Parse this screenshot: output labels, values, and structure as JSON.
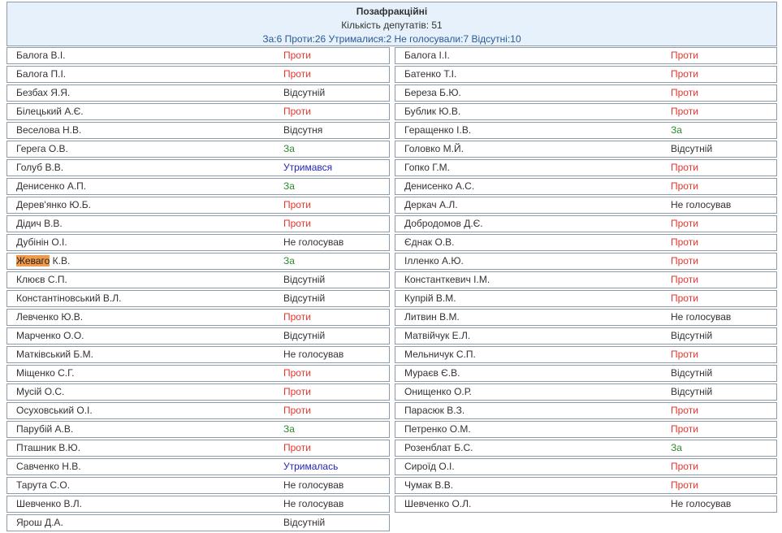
{
  "header": {
    "title": "Позафракційні",
    "count": "Кількість депутатів: 51",
    "summary": "За:6 Проти:26 Утрималися:2 Не голосували:7 Відсутні:10"
  },
  "colors": {
    "za": "#2e8b2e",
    "proty": "#e8332e",
    "abstained": "#2525b8",
    "other": "#333333",
    "highlight": "#f09a4a",
    "header_bg": "#e6f1fc"
  },
  "left": [
    {
      "name": "Балога В.І.",
      "status": "Проти"
    },
    {
      "name": "Балога П.І.",
      "status": "Проти"
    },
    {
      "name": "Безбах Я.Я.",
      "status": "Відсутній"
    },
    {
      "name": "Білецький А.Є.",
      "status": "Проти"
    },
    {
      "name": "Веселова Н.В.",
      "status": "Відсутня"
    },
    {
      "name": "Герега О.В.",
      "status": "За"
    },
    {
      "name": "Голуб В.В.",
      "status": "Утримався"
    },
    {
      "name": "Денисенко А.П.",
      "status": "За"
    },
    {
      "name": "Дерев'янко Ю.Б.",
      "status": "Проти"
    },
    {
      "name": "Дідич В.В.",
      "status": "Проти"
    },
    {
      "name": "Дубінін О.І.",
      "status": "Не голосував"
    },
    {
      "name": "К.В.",
      "highlight": "Жеваго",
      "status": "За"
    },
    {
      "name": "Клюєв С.П.",
      "status": "Відсутній"
    },
    {
      "name": "Константіновський В.Л.",
      "status": "Відсутній"
    },
    {
      "name": "Левченко Ю.В.",
      "status": "Проти"
    },
    {
      "name": "Марченко О.О.",
      "status": "Відсутній"
    },
    {
      "name": "Матківський Б.М.",
      "status": "Не голосував"
    },
    {
      "name": "Міщенко С.Г.",
      "status": "Проти"
    },
    {
      "name": "Мусій О.С.",
      "status": "Проти"
    },
    {
      "name": "Осуховський О.І.",
      "status": "Проти"
    },
    {
      "name": "Парубій А.В.",
      "status": "За"
    },
    {
      "name": "Пташник В.Ю.",
      "status": "Проти"
    },
    {
      "name": "Савченко Н.В.",
      "status": "Утрималась"
    },
    {
      "name": "Тарута С.О.",
      "status": "Не голосував"
    },
    {
      "name": "Шевченко В.Л.",
      "status": "Не голосував"
    },
    {
      "name": "Ярош Д.А.",
      "status": "Відсутній"
    }
  ],
  "right": [
    {
      "name": "Балога І.І.",
      "status": "Проти"
    },
    {
      "name": "Батенко Т.І.",
      "status": "Проти"
    },
    {
      "name": "Береза Б.Ю.",
      "status": "Проти"
    },
    {
      "name": "Бублик Ю.В.",
      "status": "Проти"
    },
    {
      "name": "Геращенко І.В.",
      "status": "За"
    },
    {
      "name": "Головко М.Й.",
      "status": "Відсутній"
    },
    {
      "name": "Гопко Г.М.",
      "status": "Проти"
    },
    {
      "name": "Денисенко А.С.",
      "status": "Проти"
    },
    {
      "name": "Деркач А.Л.",
      "status": "Не голосував"
    },
    {
      "name": "Добродомов Д.Є.",
      "status": "Проти"
    },
    {
      "name": "Єднак О.В.",
      "status": "Проти"
    },
    {
      "name": "Ілленко А.Ю.",
      "status": "Проти"
    },
    {
      "name": "Константкевич І.М.",
      "status": "Проти"
    },
    {
      "name": "Купрій В.М.",
      "status": "Проти"
    },
    {
      "name": "Литвин В.М.",
      "status": "Не голосував"
    },
    {
      "name": "Матвійчук Е.Л.",
      "status": "Відсутній"
    },
    {
      "name": "Мельничук С.П.",
      "status": "Проти"
    },
    {
      "name": "Мураєв Є.В.",
      "status": "Відсутній"
    },
    {
      "name": "Онищенко О.Р.",
      "status": "Відсутній"
    },
    {
      "name": "Парасюк В.З.",
      "status": "Проти"
    },
    {
      "name": "Петренко О.М.",
      "status": "Проти"
    },
    {
      "name": "Розенблат Б.С.",
      "status": "За"
    },
    {
      "name": "Сироїд О.І.",
      "status": "Проти"
    },
    {
      "name": "Чумак В.В.",
      "status": "Проти"
    },
    {
      "name": "Шевченко О.Л.",
      "status": "Не голосував"
    }
  ]
}
